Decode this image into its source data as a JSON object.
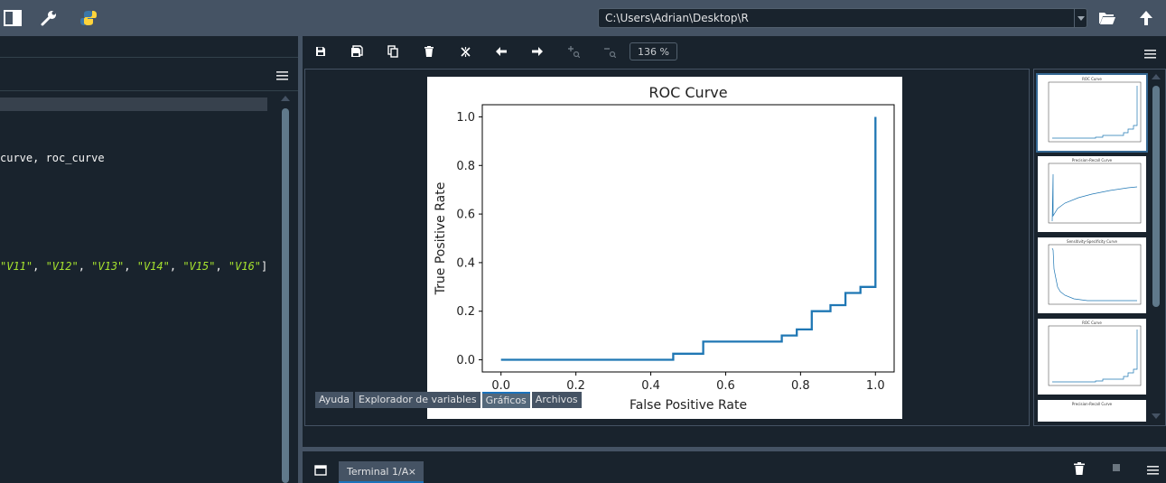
{
  "toolbar": {
    "icons": [
      "toggle-panel-icon",
      "wrench-icon",
      "python-icon"
    ],
    "path_value": "C:\\Users\\Adrian\\Desktop\\R",
    "right_icons": [
      "folder-open-icon",
      "arrow-up-icon"
    ]
  },
  "editor": {
    "lines": [
      {
        "text": "curve, roc_curve"
      },
      {
        "strings": [
          "\"V11\"",
          "\"V12\"",
          "\"V13\"",
          "\"V14\"",
          "\"V15\"",
          "\"V16\""
        ],
        "sep": ", ",
        "close": "]"
      }
    ]
  },
  "plots": {
    "toolbar_icons": [
      "save-icon",
      "save-all-icon",
      "copy-icon",
      "delete-icon",
      "close-all-icon",
      "arrow-left-icon",
      "arrow-right-icon",
      "zoom-in-icon",
      "zoom-out-icon"
    ],
    "zoom": "136 %",
    "thumbnails": [
      "ROC Curve",
      "Precision-Recall Curve",
      "Sensitivity-Specificity Curve",
      "ROC Curve",
      "Precision-Recall Curve"
    ]
  },
  "chart_data": {
    "type": "line",
    "title": "ROC Curve",
    "xlabel": "False Positive Rate",
    "ylabel": "True Positive Rate",
    "xlim": [
      -0.05,
      1.05
    ],
    "ylim": [
      -0.05,
      1.05
    ],
    "xticks": [
      "0.0",
      "0.2",
      "0.4",
      "0.6",
      "0.8",
      "1.0"
    ],
    "yticks": [
      "0.0",
      "0.2",
      "0.4",
      "0.6",
      "0.8",
      "1.0"
    ],
    "color": "#1f77b4",
    "series": [
      {
        "x": [
          0.0,
          0.46,
          0.46,
          0.54,
          0.54,
          0.75,
          0.75,
          0.79,
          0.79,
          0.83,
          0.83,
          0.88,
          0.88,
          0.92,
          0.92,
          0.96,
          0.96,
          1.0,
          1.0
        ],
        "y": [
          0.0,
          0.0,
          0.025,
          0.025,
          0.075,
          0.075,
          0.1,
          0.1,
          0.125,
          0.125,
          0.2,
          0.2,
          0.225,
          0.225,
          0.275,
          0.275,
          0.3,
          0.3,
          1.0
        ]
      }
    ]
  },
  "tabs": {
    "items": [
      "Ayuda",
      "Explorador de variables",
      "Gráficos",
      "Archivos"
    ],
    "active": 2
  },
  "console": {
    "tab_label": "Terminal 1/A",
    "close_glyph": "×",
    "icons": [
      "new-console-icon",
      "trash-icon",
      "stop-icon",
      "menu-icon"
    ]
  }
}
